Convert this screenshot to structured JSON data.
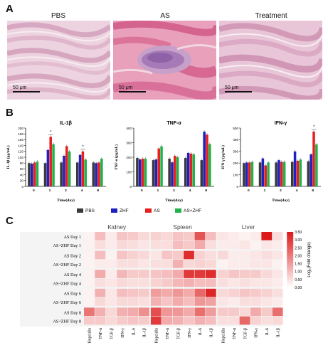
{
  "panel_a": {
    "letter": "A",
    "titles": [
      "PBS",
      "AS",
      "Treatment"
    ],
    "scale_label": "50 μm"
  },
  "panel_b": {
    "letter": "B",
    "legend": [
      "PBS",
      "ZHF",
      "AS",
      "AS+ZHF"
    ],
    "colors": {
      "PBS": "#3a3a3a",
      "ZHF": "#1f1fc2",
      "AS": "#e81f1f",
      "AS+ZHF": "#22b24a"
    }
  },
  "panel_c": {
    "letter": "C",
    "groups": [
      "Kidney",
      "Spleen",
      "Liver"
    ],
    "colorbar_title": "Log₂(Fold change)",
    "colorbar_ticks": [
      "3.50",
      "3.00",
      "2.50",
      "2.00",
      "1.50",
      "1.00",
      "0.50",
      "0.00"
    ]
  },
  "chart_data": [
    {
      "type": "bar",
      "title": "IL-1β",
      "ylabel": "IL-1β (pg/mL)",
      "xlabel": "Time(day)",
      "categories": [
        "0",
        "1",
        "2",
        "4",
        "8"
      ],
      "ylim": [
        0,
        200
      ],
      "yticks": [
        0,
        20,
        40,
        60,
        80,
        100,
        120,
        140,
        160,
        180,
        200
      ],
      "annotations": [
        {
          "category": "1",
          "text": "*"
        },
        {
          "category": "4",
          "text": "*"
        }
      ],
      "series": [
        {
          "name": "PBS",
          "values": [
            80,
            80,
            82,
            82,
            82
          ]
        },
        {
          "name": "ZHF",
          "values": [
            78,
            125,
            105,
            108,
            80
          ]
        },
        {
          "name": "AS",
          "values": [
            82,
            170,
            138,
            120,
            82
          ]
        },
        {
          "name": "AS+ZHF",
          "values": [
            85,
            145,
            120,
            92,
            95
          ]
        }
      ]
    },
    {
      "type": "bar",
      "title": "TNF-α",
      "ylabel": "TNF-α (pg/mL)",
      "xlabel": "Time(day)",
      "categories": [
        "0",
        "1",
        "2",
        "4",
        "8"
      ],
      "ylim": [
        0,
        400
      ],
      "yticks": [
        0,
        100,
        200,
        300,
        400
      ],
      "annotations": [],
      "series": [
        {
          "name": "PBS",
          "values": [
            195,
            180,
            190,
            195,
            180
          ]
        },
        {
          "name": "ZHF",
          "values": [
            185,
            185,
            165,
            230,
            375
          ]
        },
        {
          "name": "AS",
          "values": [
            190,
            260,
            210,
            225,
            355
          ]
        },
        {
          "name": "AS+ZHF",
          "values": [
            190,
            275,
            200,
            220,
            290
          ]
        }
      ]
    },
    {
      "type": "bar",
      "title": "IFN-γ",
      "ylabel": "IFN-γ (pg/mL)",
      "xlabel": "Time(day)",
      "categories": [
        "0",
        "1",
        "2",
        "4",
        "8"
      ],
      "ylim": [
        0,
        500
      ],
      "yticks": [
        0,
        100,
        200,
        300,
        400,
        500
      ],
      "annotations": [
        {
          "category": "8",
          "text": "*"
        }
      ],
      "series": [
        {
          "name": "PBS",
          "values": [
            200,
            205,
            205,
            210,
            215
          ]
        },
        {
          "name": "ZHF",
          "values": [
            205,
            240,
            225,
            300,
            275
          ]
        },
        {
          "name": "AS",
          "values": [
            205,
            180,
            210,
            220,
            470
          ]
        },
        {
          "name": "AS+ZHF",
          "values": [
            210,
            205,
            210,
            230,
            360
          ]
        }
      ]
    },
    {
      "type": "heatmap",
      "rows": [
        "AS Day 1",
        "AS+ZHF Day 1",
        "AS Day 2",
        "AS+ZHF Day 2",
        "AS Day 4",
        "AS+ZHF Day 4",
        "AS Day 6",
        "AS+ZHF Day 6",
        "AS Day 8",
        "AS+ZHF Day 8"
      ],
      "columns": [
        "Hepcidin",
        "TNF-α",
        "TGF-β",
        "IFN-γ",
        "IL-6",
        "IL-1β",
        "Hepcidin",
        "TNF-α",
        "TGF-β",
        "IFN-γ",
        "IL-6",
        "IL-1β",
        "Hepcidin",
        "TNF-α",
        "TGF-β",
        "IFN-γ",
        "IL-6",
        "IL-1β"
      ],
      "column_groups": [
        "Kidney",
        "Kidney",
        "Kidney",
        "Kidney",
        "Kidney",
        "Kidney",
        "Spleen",
        "Spleen",
        "Spleen",
        "Spleen",
        "Spleen",
        "Spleen",
        "Liver",
        "Liver",
        "Liver",
        "Liver",
        "Liver",
        "Liver"
      ],
      "zlim": [
        0,
        3.5
      ],
      "values": [
        [
          0.2,
          1.0,
          0.3,
          0.9,
          0.8,
          0.6,
          0.7,
          0.6,
          0.9,
          0.8,
          2.6,
          1.0,
          0.4,
          0.3,
          0.2,
          0.3,
          3.5,
          0.5
        ],
        [
          0.2,
          0.5,
          0.3,
          0.6,
          0.5,
          0.4,
          0.5,
          0.5,
          1.0,
          0.8,
          1.3,
          0.5,
          0.3,
          0.3,
          0.4,
          0.2,
          0.4,
          0.3
        ],
        [
          0.2,
          1.0,
          0.2,
          0.9,
          0.7,
          0.6,
          0.4,
          0.9,
          0.8,
          3.2,
          0.7,
          0.5,
          0.6,
          0.3,
          0.3,
          0.4,
          0.5,
          0.4
        ],
        [
          0.2,
          0.3,
          0.3,
          0.5,
          0.5,
          0.4,
          0.5,
          0.5,
          1.2,
          0.6,
          0.7,
          0.6,
          0.2,
          0.3,
          0.3,
          0.4,
          0.4,
          0.2
        ],
        [
          0.2,
          1.3,
          0.3,
          1.1,
          0.8,
          0.8,
          0.9,
          1.0,
          1.3,
          3.0,
          3.0,
          3.2,
          0.7,
          0.9,
          0.8,
          0.8,
          0.6,
          0.4
        ],
        [
          0.2,
          0.5,
          0.4,
          0.6,
          0.5,
          0.5,
          0.7,
          0.8,
          1.1,
          1.2,
          1.0,
          1.0,
          0.5,
          0.4,
          0.5,
          0.4,
          0.4,
          0.3
        ],
        [
          0.2,
          1.2,
          0.4,
          1.0,
          0.9,
          0.8,
          1.5,
          1.3,
          1.6,
          1.3,
          2.3,
          3.3,
          0.6,
          0.7,
          0.9,
          0.8,
          0.7,
          0.5
        ],
        [
          0.2,
          0.6,
          0.4,
          0.6,
          0.6,
          0.5,
          1.2,
          0.9,
          1.3,
          1.0,
          1.6,
          1.4,
          0.4,
          0.3,
          0.5,
          0.5,
          0.4,
          0.3
        ],
        [
          2.1,
          1.2,
          0.6,
          1.2,
          1.3,
          1.7,
          2.7,
          1.6,
          1.6,
          1.3,
          2.2,
          1.5,
          0.8,
          0.8,
          0.6,
          1.3,
          0.8,
          2.2
        ],
        [
          0.8,
          0.8,
          0.6,
          0.8,
          0.9,
          0.8,
          3.0,
          1.3,
          1.2,
          0.9,
          1.2,
          1.0,
          0.5,
          0.5,
          2.3,
          0.7,
          0.5,
          0.6
        ]
      ]
    }
  ]
}
